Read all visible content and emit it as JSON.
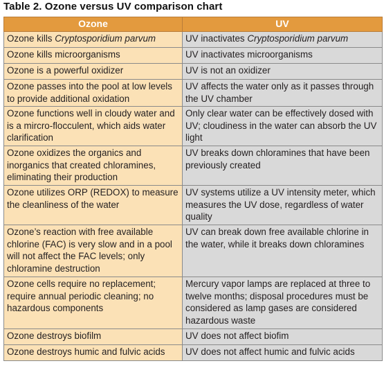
{
  "title": "Table 2. Ozone versus UV comparison chart",
  "headers": {
    "ozone": "Ozone",
    "uv": "UV"
  },
  "rows": [
    {
      "ozone_pre": "Ozone kills ",
      "ozone_em": "Cryptosporidium parvum",
      "uv_pre": "UV inactivates ",
      "uv_em": "Cryptosporidium parvum"
    },
    {
      "ozone": "Ozone kills microorganisms",
      "uv": "UV inactivates microorganisms"
    },
    {
      "ozone": "Ozone is a powerful oxidizer",
      "uv": "UV is not an oxidizer"
    },
    {
      "ozone": "Ozone passes into the pool at low levels to provide additional oxidation",
      "uv": "UV affects the water only as it passes through the UV chamber"
    },
    {
      "ozone": "Ozone functions well in cloudy water and is a mircro-flocculent, which aids water clarification",
      "uv": "Only clear water can be effectively dosed with UV; cloudiness in the water can absorb the UV light"
    },
    {
      "ozone": "Ozone oxidizes the organics and inorganics that created chloramines, eliminating their production",
      "uv": "UV breaks down chloramines that have been previously created"
    },
    {
      "ozone": "Ozone utilizes ORP (REDOX) to measure the cleanliness of the water",
      "uv": "UV systems utilize a UV intensity meter, which measures the UV dose, regardless of water quality"
    },
    {
      "ozone": "Ozone’s reaction with free available chlorine (FAC) is very slow and in a pool will not affect the FAC levels; only chloramine destruction",
      "uv": "UV can break down free available chlorine in the water, while it breaks down chloramines"
    },
    {
      "ozone": "Ozone cells require no replacement; require annual periodic cleaning; no hazardous components",
      "uv": "Mercury vapor lamps are replaced at three to twelve months; disposal procedures must be considered as lamp gases are considered hazardous waste"
    },
    {
      "ozone": "Ozone destroys biofilm",
      "uv": "UV does not affect biofim"
    },
    {
      "ozone": "Ozone destroys humic and fulvic acids",
      "uv": "UV does not affect humic and fulvic acids"
    }
  ],
  "colors": {
    "header_bg": "#e39a3e",
    "ozone_cell_bg": "#fbe1b6",
    "uv_cell_bg": "#d9d9d9"
  }
}
